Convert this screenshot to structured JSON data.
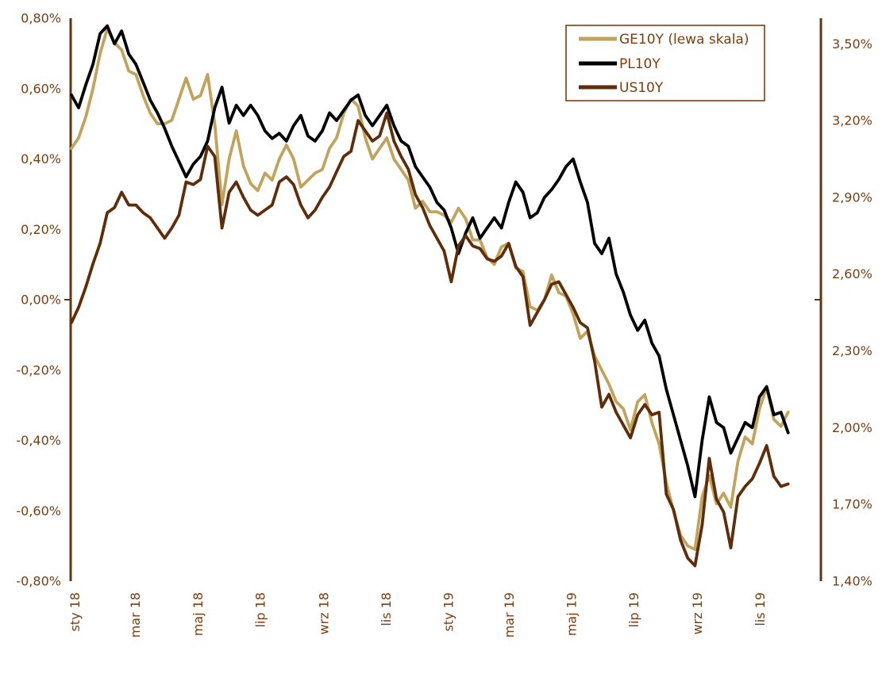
{
  "chart_data": {
    "type": "line",
    "title": "",
    "background_color": "#FFFFFF",
    "axis_line_color": "#61350F",
    "text_color": "#7C3D0E",
    "grid": false,
    "x_start_date": "2018-01-01",
    "x_step_days": 7,
    "x_domain_days": [
      0,
      732
    ],
    "x_ticks": [
      {
        "label": "sty 18",
        "day": 0
      },
      {
        "label": "mar 18",
        "day": 59
      },
      {
        "label": "maj 18",
        "day": 120
      },
      {
        "label": "lip 18",
        "day": 181
      },
      {
        "label": "wrz 18",
        "day": 243
      },
      {
        "label": "lis 18",
        "day": 304
      },
      {
        "label": "sty 19",
        "day": 365
      },
      {
        "label": "mar 19",
        "day": 424
      },
      {
        "label": "maj 19",
        "day": 485
      },
      {
        "label": "lip 19",
        "day": 546
      },
      {
        "label": "wrz 19",
        "day": 608
      },
      {
        "label": "lis 19",
        "day": 669
      }
    ],
    "left_axis": {
      "min": -0.8,
      "max": 0.8,
      "tick_step": 0.2,
      "tick_values": [
        0.8,
        0.6,
        0.4,
        0.2,
        0.0,
        -0.2,
        -0.4,
        -0.6,
        -0.8
      ],
      "tick_labels": [
        "0,80%",
        "0,60%",
        "0,40%",
        "0,20%",
        "0,00%",
        "-0,20%",
        "-0,40%",
        "-0,60%",
        "-0,80%"
      ],
      "cross_tick_value": 0.0
    },
    "right_axis": {
      "min": 1.4,
      "max": 3.6,
      "tick_step": 0.3,
      "tick_values": [
        3.5,
        3.2,
        2.9,
        2.6,
        2.3,
        2.0,
        1.7,
        1.4
      ],
      "tick_labels": [
        "3,50%",
        "3,20%",
        "2,90%",
        "2,60%",
        "2,30%",
        "2,00%",
        "1,70%",
        "1,40%"
      ]
    },
    "legend": {
      "position": "top-right",
      "border_color": "#7C3D0E"
    },
    "series": [
      {
        "name": "GE10Y (lewa skala)",
        "axis": "left",
        "color": "#C2A35C",
        "values": [
          0.43,
          0.46,
          0.52,
          0.6,
          0.7,
          0.77,
          0.73,
          0.71,
          0.65,
          0.64,
          0.58,
          0.53,
          0.5,
          0.5,
          0.51,
          0.57,
          0.63,
          0.57,
          0.58,
          0.64,
          0.5,
          0.27,
          0.4,
          0.48,
          0.38,
          0.33,
          0.31,
          0.36,
          0.34,
          0.4,
          0.44,
          0.4,
          0.32,
          0.34,
          0.36,
          0.37,
          0.43,
          0.46,
          0.53,
          0.57,
          0.55,
          0.46,
          0.4,
          0.43,
          0.46,
          0.4,
          0.37,
          0.34,
          0.26,
          0.28,
          0.25,
          0.25,
          0.24,
          0.22,
          0.26,
          0.23,
          0.17,
          0.17,
          0.12,
          0.1,
          0.15,
          0.16,
          0.09,
          0.08,
          -0.02,
          -0.03,
          0.0,
          0.07,
          0.02,
          0.01,
          -0.04,
          -0.11,
          -0.09,
          -0.16,
          -0.2,
          -0.24,
          -0.29,
          -0.31,
          -0.37,
          -0.29,
          -0.27,
          -0.35,
          -0.41,
          -0.52,
          -0.6,
          -0.67,
          -0.7,
          -0.71,
          -0.56,
          -0.5,
          -0.58,
          -0.55,
          -0.59,
          -0.46,
          -0.39,
          -0.41,
          -0.31,
          -0.25,
          -0.34,
          -0.36,
          -0.32
        ]
      },
      {
        "name": "PL10Y",
        "axis": "right",
        "color": "#000000",
        "values": [
          3.3,
          3.25,
          3.34,
          3.42,
          3.54,
          3.57,
          3.5,
          3.55,
          3.46,
          3.42,
          3.35,
          3.28,
          3.23,
          3.17,
          3.1,
          3.04,
          2.98,
          3.03,
          3.06,
          3.12,
          3.25,
          3.33,
          3.19,
          3.26,
          3.22,
          3.26,
          3.22,
          3.16,
          3.13,
          3.15,
          3.12,
          3.18,
          3.22,
          3.14,
          3.12,
          3.16,
          3.23,
          3.2,
          3.24,
          3.28,
          3.3,
          3.22,
          3.18,
          3.22,
          3.26,
          3.18,
          3.12,
          3.1,
          3.02,
          2.98,
          2.94,
          2.88,
          2.85,
          2.78,
          2.68,
          2.76,
          2.82,
          2.74,
          2.78,
          2.82,
          2.78,
          2.88,
          2.96,
          2.92,
          2.82,
          2.84,
          2.9,
          2.93,
          2.97,
          3.02,
          3.05,
          2.96,
          2.88,
          2.72,
          2.68,
          2.74,
          2.6,
          2.53,
          2.44,
          2.38,
          2.42,
          2.33,
          2.28,
          2.15,
          2.05,
          1.95,
          1.85,
          1.73,
          1.95,
          2.12,
          2.02,
          2.0,
          1.9,
          1.96,
          2.02,
          2.0,
          2.12,
          2.16,
          2.05,
          2.06,
          1.98
        ]
      },
      {
        "name": "US10Y",
        "axis": "right",
        "color": "#5E2D09",
        "values": [
          2.41,
          2.47,
          2.55,
          2.64,
          2.72,
          2.84,
          2.86,
          2.92,
          2.87,
          2.87,
          2.84,
          2.82,
          2.78,
          2.74,
          2.78,
          2.83,
          2.96,
          2.95,
          2.97,
          3.1,
          3.06,
          2.78,
          2.92,
          2.96,
          2.9,
          2.85,
          2.83,
          2.85,
          2.87,
          2.96,
          2.98,
          2.95,
          2.87,
          2.82,
          2.85,
          2.9,
          2.94,
          3.0,
          3.06,
          3.08,
          3.2,
          3.16,
          3.12,
          3.14,
          3.23,
          3.12,
          3.06,
          3.01,
          2.91,
          2.86,
          2.79,
          2.74,
          2.69,
          2.57,
          2.71,
          2.75,
          2.71,
          2.7,
          2.66,
          2.65,
          2.67,
          2.72,
          2.63,
          2.59,
          2.4,
          2.45,
          2.5,
          2.56,
          2.57,
          2.52,
          2.47,
          2.41,
          2.39,
          2.26,
          2.08,
          2.13,
          2.06,
          2.01,
          1.96,
          2.05,
          2.09,
          2.05,
          2.06,
          1.74,
          1.68,
          1.56,
          1.49,
          1.46,
          1.62,
          1.88,
          1.72,
          1.67,
          1.53,
          1.73,
          1.77,
          1.8,
          1.86,
          1.93,
          1.81,
          1.77,
          1.78
        ]
      }
    ]
  }
}
